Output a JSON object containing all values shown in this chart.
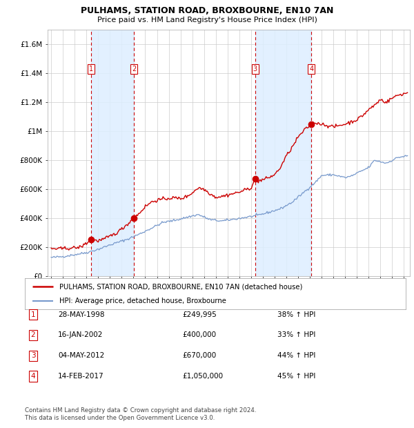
{
  "title": "PULHAMS, STATION ROAD, BROXBOURNE, EN10 7AN",
  "subtitle": "Price paid vs. HM Land Registry's House Price Index (HPI)",
  "ylim": [
    0,
    1700000
  ],
  "xlim_start": 1994.7,
  "xlim_end": 2025.5,
  "yticks": [
    0,
    200000,
    400000,
    600000,
    800000,
    1000000,
    1200000,
    1400000,
    1600000
  ],
  "ytick_labels": [
    "£0",
    "£200K",
    "£400K",
    "£600K",
    "£800K",
    "£1M",
    "£1.2M",
    "£1.4M",
    "£1.6M"
  ],
  "background_color": "#ffffff",
  "plot_bg_color": "#ffffff",
  "grid_color": "#cccccc",
  "red_line_color": "#cc0000",
  "blue_line_color": "#7799cc",
  "shade_color": "#ddeeff",
  "dashed_line_color": "#cc0000",
  "purchases": [
    {
      "num": 1,
      "year": 1998.41,
      "price": 249995
    },
    {
      "num": 2,
      "year": 2002.04,
      "price": 400000
    },
    {
      "num": 3,
      "year": 2012.34,
      "price": 670000
    },
    {
      "num": 4,
      "year": 2017.12,
      "price": 1050000
    }
  ],
  "legend_line1": "PULHAMS, STATION ROAD, BROXBOURNE, EN10 7AN (detached house)",
  "legend_line2": "HPI: Average price, detached house, Broxbourne",
  "footer_line1": "Contains HM Land Registry data © Crown copyright and database right 2024.",
  "footer_line2": "This data is licensed under the Open Government Licence v3.0.",
  "table_rows": [
    {
      "num": 1,
      "date": "28-MAY-1998",
      "price": "£249,995",
      "pct": "38% ↑ HPI"
    },
    {
      "num": 2,
      "date": "16-JAN-2002",
      "price": "£400,000",
      "pct": "33% ↑ HPI"
    },
    {
      "num": 3,
      "date": "04-MAY-2012",
      "price": "£670,000",
      "pct": "44% ↑ HPI"
    },
    {
      "num": 4,
      "date": "14-FEB-2017",
      "price": "£1,050,000",
      "pct": "45% ↑ HPI"
    }
  ]
}
